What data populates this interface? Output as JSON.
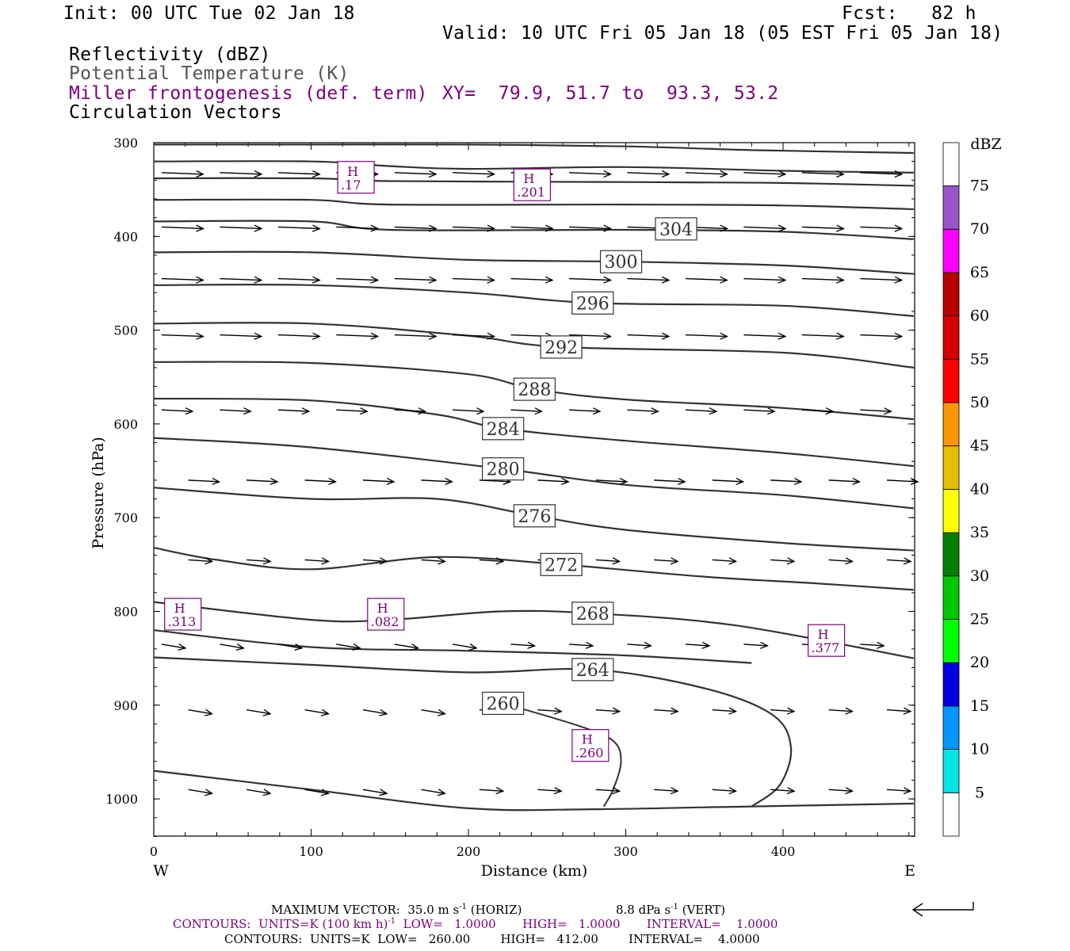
{
  "header": {
    "init": "Init: 00 UTC Tue 02 Jan 18",
    "fcst": "Fcst:   82 h",
    "valid": "Valid: 10 UTC Fri 05 Jan 18 (05 EST Fri 05 Jan 18)",
    "fields": [
      "Reflectivity (dBZ)",
      "Potential Temperature (K)",
      "Miller frontogenesis (def. term)",
      "Circulation Vectors"
    ],
    "xy": "XY=  79.9, 51.7 to  93.3, 53.2"
  },
  "colors": {
    "frontogenesis": "#800080",
    "theta": "#333333",
    "potential_temperature_label": "#555555"
  },
  "chart_data": {
    "type": "line",
    "ylabel": "Pressure (hPa)",
    "xlabel": "Distance (km)",
    "y_ticks": [
      "300",
      "400",
      "500",
      "600",
      "700",
      "800",
      "900",
      "1000"
    ],
    "x_ticks": [
      "0",
      "100",
      "200",
      "300",
      "400"
    ],
    "xlim": [
      0,
      483
    ],
    "ylim": [
      1040,
      300
    ],
    "x_left_label": "W",
    "x_right_label": "E",
    "grid": false,
    "theta_contours": [
      {
        "label": "304",
        "label_at": [
          332,
          392
        ],
        "points": [
          [
            0,
            302
          ],
          [
            100,
            302
          ],
          [
            200,
            302
          ],
          [
            300,
            304
          ],
          [
            382,
            308
          ],
          [
            483,
            311
          ]
        ]
      },
      {
        "label": "",
        "label_at": null,
        "points": [
          [
            0,
            320
          ],
          [
            100,
            320
          ],
          [
            150,
            325
          ],
          [
            200,
            328
          ],
          [
            300,
            326
          ],
          [
            400,
            330
          ],
          [
            483,
            332
          ]
        ]
      },
      {
        "label": "",
        "label_at": null,
        "points": [
          [
            0,
            338
          ],
          [
            100,
            338
          ],
          [
            150,
            341
          ],
          [
            300,
            342
          ],
          [
            400,
            343
          ],
          [
            483,
            346
          ]
        ]
      },
      {
        "label": "",
        "label_at": null,
        "points": [
          [
            0,
            361
          ],
          [
            100,
            361
          ],
          [
            150,
            366
          ],
          [
            300,
            366
          ],
          [
            400,
            367
          ],
          [
            483,
            371
          ]
        ]
      },
      {
        "label": "",
        "label_at": null,
        "points": [
          [
            0,
            384
          ],
          [
            100,
            384
          ],
          [
            150,
            393
          ],
          [
            300,
            393
          ],
          [
            400,
            395
          ],
          [
            483,
            403
          ]
        ]
      },
      {
        "label": "300",
        "label_at": [
          297,
          427
        ],
        "points": [
          [
            0,
            417
          ],
          [
            100,
            417
          ],
          [
            200,
            425
          ],
          [
            300,
            427
          ],
          [
            400,
            431
          ],
          [
            483,
            440
          ]
        ]
      },
      {
        "label": "296",
        "label_at": [
          279,
          471
        ],
        "points": [
          [
            0,
            452
          ],
          [
            100,
            452
          ],
          [
            200,
            460
          ],
          [
            279,
            471
          ],
          [
            400,
            474
          ],
          [
            483,
            485
          ]
        ]
      },
      {
        "label": "292",
        "label_at": [
          259,
          518
        ],
        "points": [
          [
            0,
            493
          ],
          [
            100,
            493
          ],
          [
            200,
            506
          ],
          [
            259,
            518
          ],
          [
            400,
            524
          ],
          [
            483,
            540
          ]
        ]
      },
      {
        "label": "288",
        "label_at": [
          242,
          563
        ],
        "points": [
          [
            0,
            534
          ],
          [
            100,
            535
          ],
          [
            200,
            547
          ],
          [
            242,
            563
          ],
          [
            300,
            574
          ],
          [
            400,
            583
          ],
          [
            483,
            595
          ]
        ]
      },
      {
        "label": "284",
        "label_at": [
          222,
          605
        ],
        "points": [
          [
            0,
            573
          ],
          [
            100,
            575
          ],
          [
            180,
            590
          ],
          [
            222,
            605
          ],
          [
            300,
            618
          ],
          [
            400,
            631
          ],
          [
            483,
            645
          ]
        ]
      },
      {
        "label": "280",
        "label_at": [
          222,
          648
        ],
        "points": [
          [
            0,
            615
          ],
          [
            100,
            625
          ],
          [
            222,
            648
          ],
          [
            300,
            665
          ],
          [
            400,
            676
          ],
          [
            483,
            690
          ]
        ]
      },
      {
        "label": "276",
        "label_at": [
          242,
          698
        ],
        "points": [
          [
            0,
            668
          ],
          [
            100,
            680
          ],
          [
            180,
            680
          ],
          [
            242,
            698
          ],
          [
            300,
            713
          ],
          [
            400,
            727
          ],
          [
            483,
            735
          ]
        ]
      },
      {
        "label": "272",
        "label_at": [
          259,
          750
        ],
        "points": [
          [
            0,
            732
          ],
          [
            40,
            745
          ],
          [
            100,
            755
          ],
          [
            180,
            742
          ],
          [
            259,
            750
          ],
          [
            350,
            763
          ],
          [
            420,
            770
          ],
          [
            483,
            777
          ]
        ]
      },
      {
        "label": "268",
        "label_at": [
          279,
          802
        ],
        "points": [
          [
            0,
            790
          ],
          [
            100,
            809
          ],
          [
            150,
            809
          ],
          [
            220,
            800
          ],
          [
            279,
            802
          ],
          [
            370,
            815
          ],
          [
            483,
            850
          ]
        ]
      },
      {
        "label": "",
        "label_at": null,
        "points": [
          [
            0,
            820
          ],
          [
            100,
            838
          ],
          [
            200,
            842
          ],
          [
            300,
            847
          ],
          [
            380,
            855
          ]
        ]
      },
      {
        "label": "264",
        "label_at": [
          279,
          862
        ],
        "points": [
          [
            0,
            849
          ],
          [
            100,
            857
          ],
          [
            200,
            865
          ],
          [
            279,
            862
          ],
          [
            350,
            882
          ],
          [
            393,
            910
          ],
          [
            405,
            945
          ],
          [
            398,
            985
          ],
          [
            380,
            1008
          ]
        ]
      },
      {
        "label": "260",
        "label_at": [
          222,
          898
        ],
        "points": [
          [
            0,
            970
          ],
          [
            100,
            990
          ],
          [
            200,
            1010
          ],
          [
            280,
            1011
          ],
          [
            380,
            1008
          ],
          [
            483,
            1005
          ]
        ]
      }
    ],
    "theta_inner_260": {
      "points": [
        [
          222,
          898
        ],
        [
          270,
          922
        ],
        [
          292,
          938
        ],
        [
          297,
          960
        ],
        [
          292,
          990
        ],
        [
          286,
          1008
        ]
      ]
    },
    "frontogenesis_highs": [
      {
        "label": "H",
        "value": ".17",
        "x": 128,
        "y": 337
      },
      {
        "label": "H",
        "value": ".201",
        "x": 240,
        "y": 345
      },
      {
        "label": "H",
        "value": ".313",
        "x": 18,
        "y": 803
      },
      {
        "label": "H",
        "value": ".082",
        "x": 147,
        "y": 803
      },
      {
        "label": "H",
        "value": ".377",
        "x": 427,
        "y": 831
      },
      {
        "label": "H",
        "value": ".260",
        "x": 277,
        "y": 943
      }
    ],
    "vector_rows_hpa": [
      332,
      340,
      390,
      395,
      445,
      450,
      505,
      510,
      515,
      520,
      585,
      590,
      600,
      660,
      665,
      675,
      680,
      745,
      750,
      755,
      765,
      770,
      835,
      845,
      850,
      905,
      910,
      935,
      940,
      990,
      1005
    ],
    "colorbar": {
      "title": "dBZ",
      "levels": [
        "5",
        "10",
        "15",
        "20",
        "25",
        "30",
        "35",
        "40",
        "45",
        "50",
        "55",
        "60",
        "65",
        "70",
        "75"
      ],
      "colors": [
        "#ffffff",
        "#00e5e5",
        "#0096ff",
        "#0000e0",
        "#00ff00",
        "#00c800",
        "#008000",
        "#ffff00",
        "#e6be00",
        "#ff9600",
        "#ff0000",
        "#d70000",
        "#b90000",
        "#ff00ff",
        "#9955c9",
        "#ffffff"
      ]
    }
  },
  "footer": {
    "max_vector_prefix": "MAXIMUM VECTOR:  35.0 m s",
    "max_vector_horiz": "(HORIZ)",
    "max_vector_vert_prefix": "8.8 dPa s",
    "max_vector_vert": "(VERT)",
    "exp": "-1",
    "contours1": "CONTOURS:  UNITS=K (100 km h)",
    "contours1_rest": "  LOW=   1.0000       HIGH=   1.0000       INTERVAL=    1.0000",
    "contours2": "CONTOURS:  UNITS=K  LOW=   260.00        HIGH=   412.00        INTERVAL=    4.0000"
  }
}
